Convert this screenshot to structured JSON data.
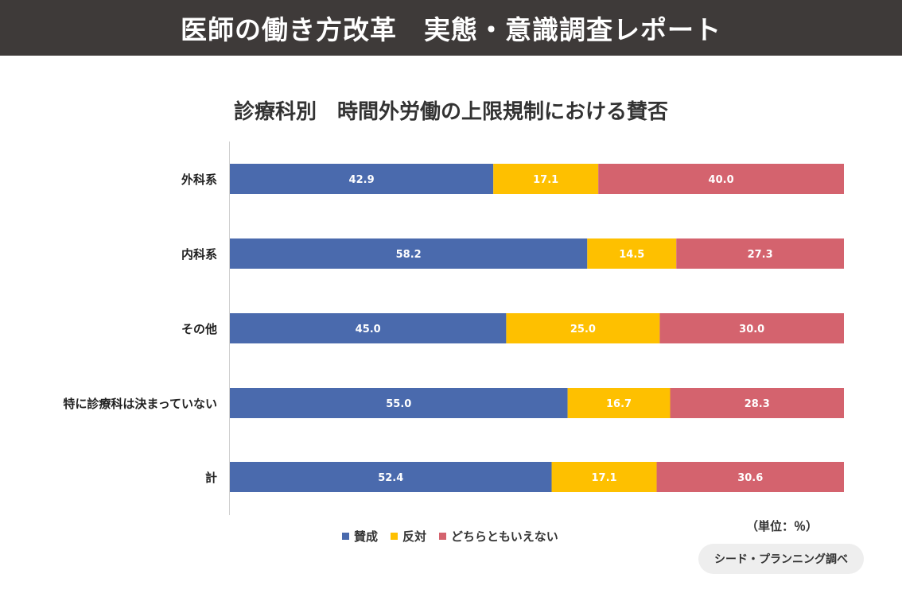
{
  "header": {
    "title": "医師の働き方改革　実態・意識調査レポート"
  },
  "colors": {
    "header_bg": "#3e3a39",
    "agree": "#4a6aad",
    "disagree": "#fec000",
    "neither": "#d4636e"
  },
  "chart_data": {
    "type": "bar",
    "orientation": "horizontal",
    "stacked": true,
    "title": "診療科別　時間外労働の上限規制における賛否",
    "categories": [
      "外科系",
      "内科系",
      "その他",
      "特に診療科は決まっていない",
      "計"
    ],
    "series": [
      {
        "name": "賛成",
        "values": [
          42.9,
          58.2,
          45.0,
          55.0,
          52.4
        ],
        "labels": [
          "42.9",
          "58.2",
          "45.0",
          "55.0",
          "52.4"
        ]
      },
      {
        "name": "反対",
        "values": [
          17.1,
          14.5,
          25.0,
          16.7,
          17.1
        ],
        "labels": [
          "17.1",
          "14.5",
          "25.0",
          "16.7",
          "17.1"
        ]
      },
      {
        "name": "どちらともいえない",
        "values": [
          40.0,
          27.3,
          30.0,
          28.3,
          30.6
        ],
        "labels": [
          "40.0",
          "27.3",
          "30.0",
          "28.3",
          "30.6"
        ]
      }
    ],
    "xlim": [
      0,
      100
    ],
    "unit_note": "（単位：％）",
    "legend_position": "bottom"
  },
  "source": "シード・プランニング調べ"
}
